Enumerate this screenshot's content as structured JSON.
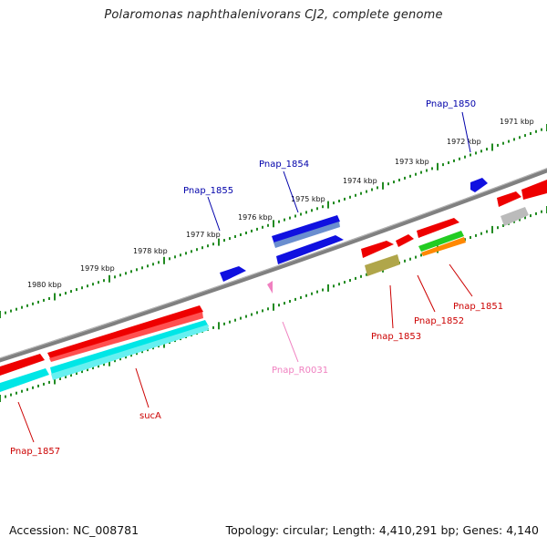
{
  "title": "Polaromonas naphthalenivorans CJ2, complete genome",
  "footer": {
    "accession": "Accession: NC_008781",
    "topology": "Topology: circular; Length: 4,410,291 bp; Genes: 4,140"
  },
  "scale_labels": [
    "1971 kbp",
    "1972 kbp",
    "1973 kbp",
    "1974 kbp",
    "1975 kbp",
    "1976 kbp",
    "1977 kbp",
    "1978 kbp",
    "1979 kbp",
    "1980 kbp"
  ],
  "colors": {
    "backbone": "#808080",
    "ticks": "#228B22",
    "blue_gene": "#1010e0",
    "red_gene": "#ee0000",
    "cyan_gene": "#00e6e6",
    "olive_gene": "#b0a64a",
    "green_gene": "#22cc22",
    "orange_gene": "#ff8800",
    "grey_gene": "#bbbbbb",
    "rna": "#f080c0",
    "label_blue": "#0000aa",
    "label_red": "#cc0000",
    "label_pink": "#f080c0"
  },
  "genes": [
    {
      "label": "Pnap_1850",
      "color": "label_blue"
    },
    {
      "label": "Pnap_1854",
      "color": "label_blue"
    },
    {
      "label": "Pnap_1855",
      "color": "label_blue"
    },
    {
      "label": "Pnap_1851",
      "color": "label_red"
    },
    {
      "label": "Pnap_1852",
      "color": "label_red"
    },
    {
      "label": "Pnap_1853",
      "color": "label_red"
    },
    {
      "label": "Pnap_R0031",
      "color": "label_pink"
    },
    {
      "label": "sucA",
      "color": "label_red"
    },
    {
      "label": "Pnap_1857",
      "color": "label_red"
    }
  ]
}
